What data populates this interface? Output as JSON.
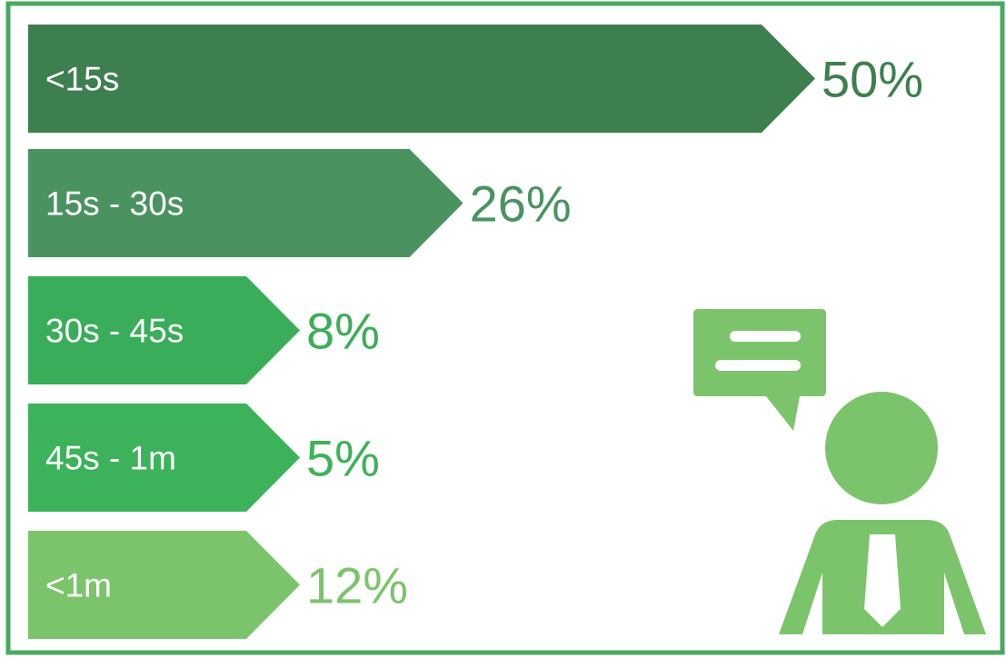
{
  "chart_data": {
    "type": "bar",
    "orientation": "horizontal",
    "categories": [
      "<15s",
      "15s - 30s",
      "30s - 45s",
      "45s - 1m",
      "<1m"
    ],
    "values": [
      50,
      26,
      8,
      5,
      12
    ],
    "value_labels": [
      "50%",
      "26%",
      "8%",
      "5%",
      "12%"
    ],
    "unit": "%",
    "bar_colors": [
      "#3e7f4f",
      "#4a9360",
      "#3aad5a",
      "#3cb25a",
      "#7cc46c"
    ],
    "value_label_colors": [
      "#3e7f4f",
      "#4a9360",
      "#3aad5a",
      "#3cb25a",
      "#7cc46c"
    ]
  },
  "colors": {
    "frame": "#4aa860",
    "icon": "#7cc46c",
    "background": "#ffffff"
  },
  "icons": {
    "person": "person-with-tie-icon",
    "speech": "speech-bubble-icon"
  }
}
